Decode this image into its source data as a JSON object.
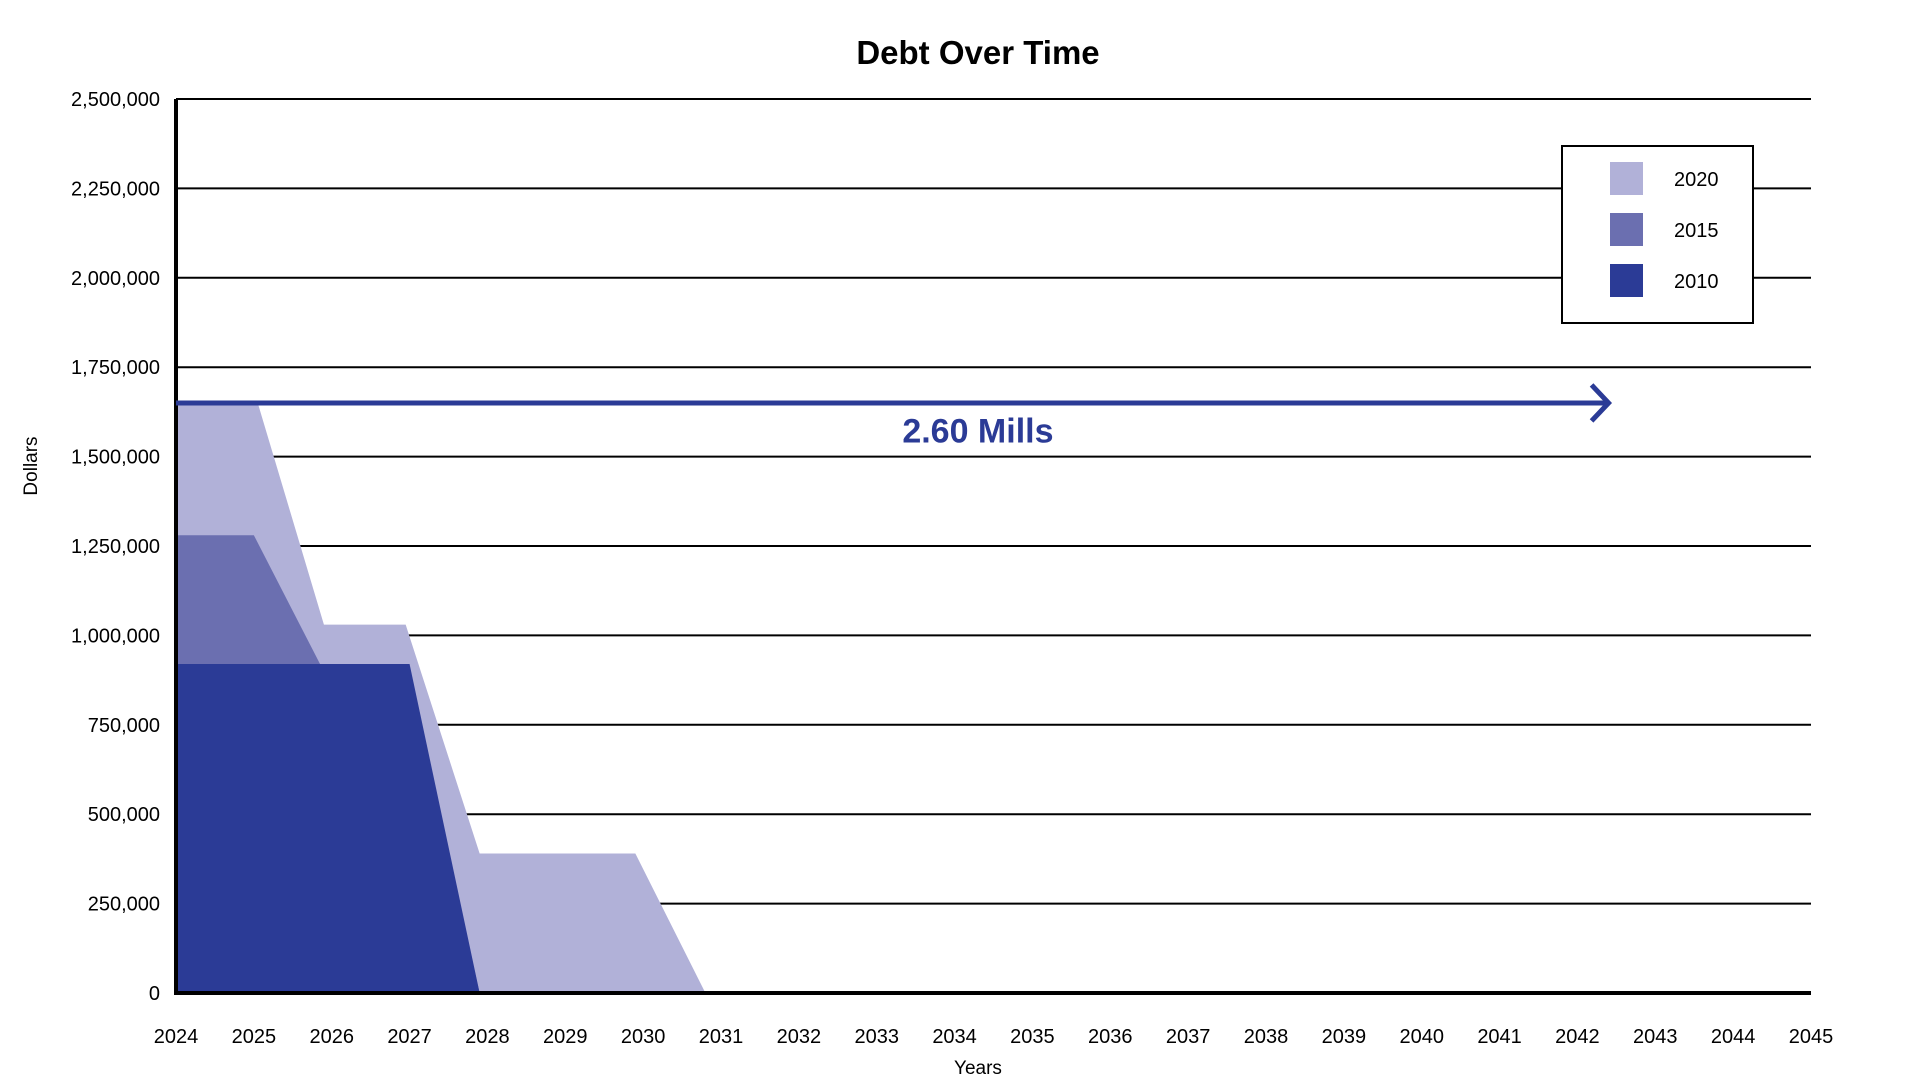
{
  "chart_data": {
    "type": "area",
    "title": "Debt Over Time",
    "xlabel": "Years",
    "ylabel": "Dollars",
    "xlim": [
      2024,
      2045
    ],
    "ylim": [
      0,
      2500000
    ],
    "x_ticks": [
      2024,
      2025,
      2026,
      2027,
      2028,
      2029,
      2030,
      2031,
      2032,
      2033,
      2034,
      2035,
      2036,
      2037,
      2038,
      2039,
      2040,
      2041,
      2042,
      2043,
      2044,
      2045
    ],
    "y_ticks": [
      0,
      250000,
      500000,
      750000,
      1000000,
      1250000,
      1500000,
      1750000,
      2000000,
      2250000,
      2500000
    ],
    "y_tick_labels": [
      "0",
      "250,000",
      "500,000",
      "750,000",
      "1,000,000",
      "1,250,000",
      "1,500,000",
      "1,750,000",
      "2,000,000",
      "2,250,000",
      "2,500,000"
    ],
    "grid": true,
    "legend_position": "top-right",
    "series": [
      {
        "name": "2020",
        "color": "#b1b1d8",
        "points": [
          [
            2024,
            1650000
          ],
          [
            2025.05,
            1650000
          ],
          [
            2025.9,
            1030000
          ],
          [
            2026.95,
            1030000
          ],
          [
            2027.9,
            390000
          ],
          [
            2029.9,
            390000
          ],
          [
            2030.8,
            0
          ]
        ]
      },
      {
        "name": "2015",
        "color": "#6b6fb0",
        "points": [
          [
            2024,
            1280000
          ],
          [
            2025.0,
            1280000
          ],
          [
            2025.85,
            920000
          ],
          [
            2026.95,
            920000
          ],
          [
            2027.9,
            0
          ]
        ]
      },
      {
        "name": "2010",
        "color": "#2b3b96",
        "points": [
          [
            2024,
            920000
          ],
          [
            2027.0,
            920000
          ],
          [
            2027.9,
            0
          ]
        ]
      }
    ],
    "annotations": [
      {
        "text": "2.60 Mills",
        "arrow_y": 1650000,
        "arrow_x_start": 2024,
        "arrow_x_end": 2042.4,
        "text_x": 2034.3,
        "text_y": 1540000,
        "color": "#2b3b96"
      }
    ]
  }
}
